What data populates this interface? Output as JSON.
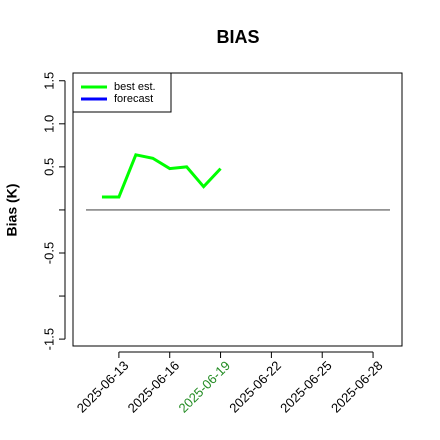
{
  "chart_data": {
    "type": "line",
    "title": "BIAS",
    "y_label": "Bias (K)",
    "x": [
      "2025-06-12",
      "2025-06-13",
      "2025-06-14",
      "2025-06-15",
      "2025-06-16",
      "2025-06-17",
      "2025-06-18",
      "2025-06-19"
    ],
    "series": [
      {
        "name": "best est.",
        "color": "#00ff00",
        "values": [
          0.15,
          0.15,
          0.64,
          0.6,
          0.48,
          0.5,
          0.27,
          0.48
        ]
      },
      {
        "name": "forecast",
        "color": "#0000ff",
        "values": [
          null,
          null,
          null,
          null,
          null,
          null,
          null,
          null
        ]
      }
    ],
    "xlim": [
      "2025-06-10T07:00",
      "2025-06-29T17:00"
    ],
    "xticks": [
      "2025-06-13",
      "2025-06-16",
      "2025-06-19",
      "2025-06-22",
      "2025-06-25",
      "2025-06-28"
    ],
    "highlight_xtick": "2025-06-19",
    "highlight_color": "#228b22",
    "ylim": [
      -1.58,
      1.59
    ],
    "yticks": [
      -1.5,
      -0.5,
      0.5,
      {
        "value": 1,
        "label": "1.0"
      },
      1.5
    ],
    "minor_yticks": [
      -1,
      0
    ],
    "reference_line": 0,
    "legend": "top-left"
  }
}
